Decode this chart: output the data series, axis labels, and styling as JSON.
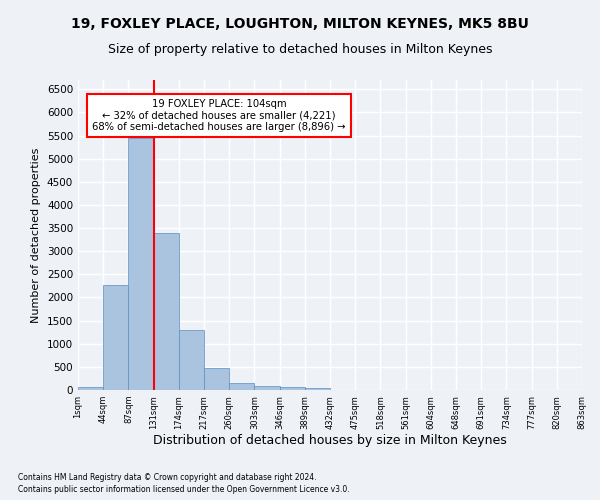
{
  "title1": "19, FOXLEY PLACE, LOUGHTON, MILTON KEYNES, MK5 8BU",
  "title2": "Size of property relative to detached houses in Milton Keynes",
  "xlabel": "Distribution of detached houses by size in Milton Keynes",
  "ylabel": "Number of detached properties",
  "footnote1": "Contains HM Land Registry data © Crown copyright and database right 2024.",
  "footnote2": "Contains public sector information licensed under the Open Government Licence v3.0.",
  "bin_labels": [
    "1sqm",
    "44sqm",
    "87sqm",
    "131sqm",
    "174sqm",
    "217sqm",
    "260sqm",
    "303sqm",
    "346sqm",
    "389sqm",
    "432sqm",
    "475sqm",
    "518sqm",
    "561sqm",
    "604sqm",
    "648sqm",
    "691sqm",
    "734sqm",
    "777sqm",
    "820sqm",
    "863sqm"
  ],
  "bar_values": [
    70,
    2280,
    5450,
    3400,
    1300,
    480,
    160,
    85,
    55,
    35,
    0,
    0,
    0,
    0,
    0,
    0,
    0,
    0,
    0,
    0
  ],
  "bar_color": "#aac4e0",
  "bar_edge_color": "#5a8fc0",
  "ylim": [
    0,
    6700
  ],
  "yticks": [
    0,
    500,
    1000,
    1500,
    2000,
    2500,
    3000,
    3500,
    4000,
    4500,
    5000,
    5500,
    6000,
    6500
  ],
  "property_line_x": 2.5,
  "property_label": "19 FOXLEY PLACE: 104sqm",
  "annotation_line2": "← 32% of detached houses are smaller (4,221)",
  "annotation_line3": "68% of semi-detached houses are larger (8,896) →",
  "annotation_box_color": "#ff0000",
  "vline_color": "#ff0000",
  "background_color": "#eef2f7",
  "grid_color": "#ffffff",
  "title1_fontsize": 10,
  "title2_fontsize": 9,
  "xlabel_fontsize": 9,
  "ylabel_fontsize": 8
}
